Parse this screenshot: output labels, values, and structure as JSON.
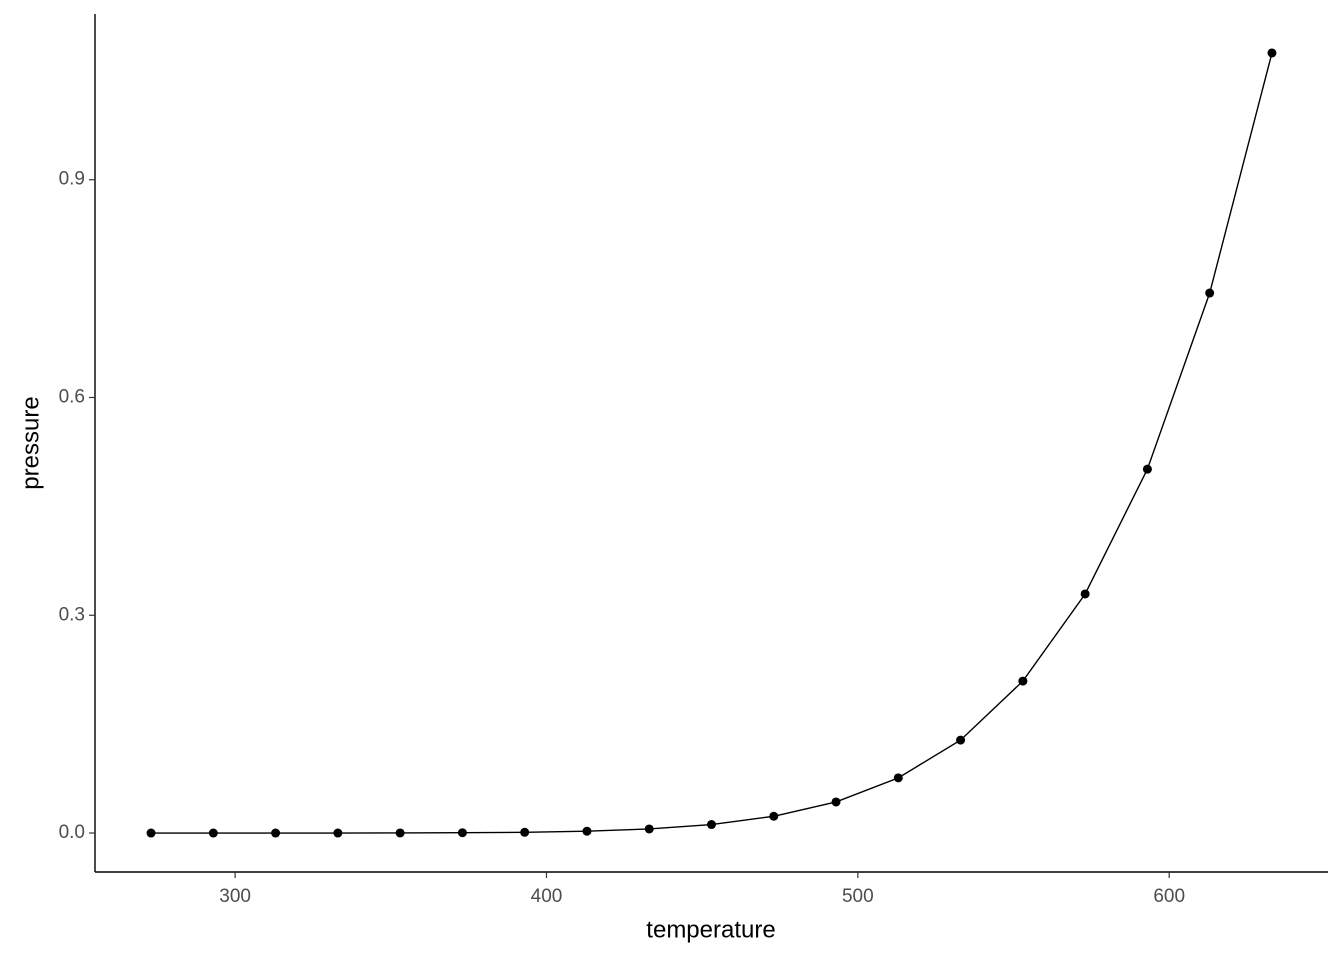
{
  "chart_data": {
    "type": "line",
    "x_label": "temperature",
    "y_label": "pressure",
    "x": [
      273,
      293,
      313,
      333,
      353,
      373,
      393,
      413,
      433,
      453,
      473,
      493,
      513,
      533,
      553,
      573,
      593,
      613,
      633
    ],
    "series": [
      {
        "name": "pressure",
        "color": "#000000",
        "values": [
          0.0,
          0.0,
          0.0,
          0.0,
          0.0001,
          0.0004,
          0.001,
          0.0025,
          0.0056,
          0.0117,
          0.0231,
          0.0428,
          0.076,
          0.128,
          0.2093,
          0.3293,
          0.5013,
          0.7439,
          1.0746
        ]
      }
    ],
    "xlim": [
      255,
      651
    ],
    "xticks": [
      300,
      400,
      500,
      600
    ],
    "ylim": [
      -0.0537,
      1.1283
    ],
    "yticks": [
      {
        "value": 0,
        "label": "0.0"
      },
      0.3,
      0.6,
      0.9
    ],
    "grid": false,
    "markers": true
  }
}
